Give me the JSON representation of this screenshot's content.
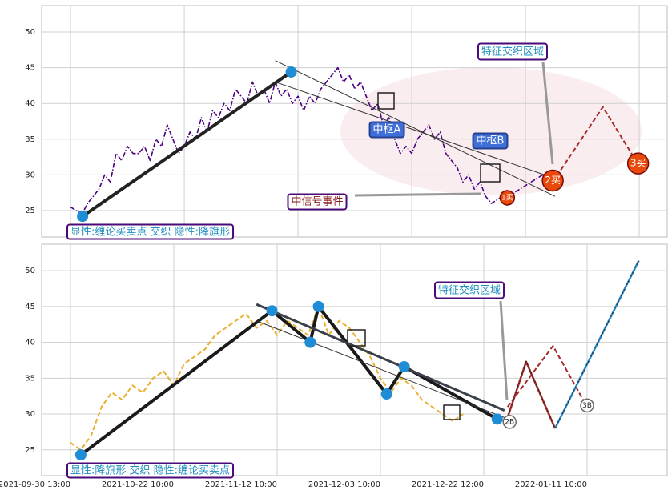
{
  "chart_data": [
    {
      "type": "line",
      "xlim": [
        -25.4,
        524.6
      ],
      "ylim": [
        21.3,
        53.7
      ],
      "xticks": [
        0,
        100,
        200,
        300,
        400,
        500
      ],
      "yticks": [
        25,
        30,
        35,
        40,
        45,
        50
      ],
      "grid": true,
      "caption": "显性:缠论买卖点 交织 隐性:降旗形",
      "annotations": [
        "中枢A",
        "中枢B",
        "特征交织区域",
        "中信号事件"
      ],
      "series": [
        {
          "style": "dashdot",
          "color": "#4b0082",
          "x": [
            0,
            5,
            10,
            15,
            20,
            25,
            30,
            35,
            40,
            45,
            50,
            55,
            60,
            65,
            70,
            75,
            80,
            85,
            90,
            95,
            100,
            105,
            110,
            115,
            120,
            125,
            130,
            135,
            140,
            145,
            150,
            155,
            160,
            165,
            170,
            175,
            180,
            185,
            190,
            195,
            200,
            205,
            210,
            215,
            220,
            225,
            230,
            235,
            240,
            245,
            250,
            255,
            260,
            265,
            270,
            275,
            280,
            285,
            290,
            295,
            300,
            305,
            310,
            315,
            320,
            325,
            330,
            335,
            340,
            345,
            350,
            355,
            360,
            365,
            370,
            375,
            380,
            385,
            390,
            395,
            400,
            405,
            410,
            415
          ],
          "values": [
            25.5,
            25,
            24.5,
            26,
            27,
            28,
            30,
            29,
            33,
            32,
            34,
            33,
            33,
            34,
            32,
            35,
            34,
            37,
            35,
            33,
            34,
            36,
            35,
            38,
            36,
            39,
            38,
            40,
            39,
            42,
            41,
            40,
            43,
            41,
            42,
            40,
            43,
            41,
            42,
            40,
            41,
            39,
            41,
            40,
            42,
            43,
            44,
            45,
            43,
            44,
            42,
            43,
            41,
            39,
            40,
            37,
            38,
            35,
            33,
            34,
            33,
            35,
            36,
            37,
            35,
            36,
            33,
            32,
            31,
            29,
            30,
            28,
            29,
            27,
            26,
            26.5,
            27,
            26,
            27.5,
            28,
            28.5,
            29,
            29.5,
            30
          ]
        },
        {
          "style": "thick",
          "color": "#222222",
          "x": [
            10.6,
            194
          ],
          "values": [
            24.2,
            44.4
          ]
        },
        {
          "style": "thin",
          "color": "#333333",
          "x": [
            180,
            426
          ],
          "values": [
            46,
            27
          ]
        },
        {
          "style": "thin",
          "color": "#333333",
          "x": [
            180,
            426
          ],
          "values": [
            43,
            29.5
          ]
        },
        {
          "style": "dashed",
          "color": "#a52a2a",
          "x": [
            424,
            468,
            499
          ],
          "values": [
            29,
            39.5,
            31.5
          ]
        }
      ],
      "points": {
        "color": "#1f8dd6",
        "x": [
          10.6,
          194
        ],
        "values": [
          24.2,
          44.4
        ]
      },
      "signals": {
        "color": "#e84a0c",
        "labels": [
          "1买",
          "2买",
          "3买"
        ],
        "x": [
          384,
          424,
          499
        ],
        "values": [
          26.8,
          29.2,
          31.6
        ]
      }
    },
    {
      "type": "line",
      "xlim": [
        -27.9,
        577.5
      ],
      "ylim": [
        21.4,
        53.7
      ],
      "xticks": [
        {
          "value": 0,
          "label": "2021-09-30 13:00"
        },
        {
          "value": 100,
          "label": "2021-10-22 10:00"
        },
        {
          "value": 200,
          "label": "2021-11-12 10:00"
        },
        {
          "value": 300,
          "label": "2021-12-03 10:00"
        },
        {
          "value": 400,
          "label": "2021-12-22 12:00"
        },
        {
          "value": 500,
          "label": "2022-01-11 10:00"
        }
      ],
      "yticks": [
        25,
        30,
        35,
        40,
        45,
        50
      ],
      "grid": true,
      "caption": "显性:降旗形 交织 隐性:缠论买卖点",
      "annotations": [
        "特征交织区域"
      ],
      "series": [
        {
          "style": "dashed",
          "color": "#e8b030",
          "x": [
            0,
            10,
            20,
            30,
            40,
            50,
            60,
            70,
            80,
            90,
            100,
            110,
            120,
            130,
            140,
            150,
            160,
            170,
            180,
            190,
            200,
            210,
            220,
            230,
            240,
            250,
            260,
            270,
            280,
            290,
            300,
            310,
            320,
            330,
            340,
            350,
            360,
            370,
            380
          ],
          "values": [
            26,
            25,
            27,
            31,
            33,
            32,
            34,
            33,
            35,
            36,
            34,
            37,
            38,
            39,
            41,
            42,
            43,
            44,
            42,
            43,
            41,
            43,
            42,
            41,
            45,
            41,
            43,
            42,
            40,
            38,
            35,
            33,
            35,
            34,
            32,
            31,
            30,
            29,
            30
          ]
        },
        {
          "style": "thick",
          "color": "#1a1a1a",
          "x": [
            10,
            195,
            232,
            240,
            306,
            323,
            413
          ],
          "values": [
            24.3,
            44.4,
            40,
            45,
            32.8,
            36.6,
            29.3
          ]
        },
        {
          "style": "trend",
          "color": "#3a3f4a",
          "x": [
            180,
            420
          ],
          "values": [
            45.3,
            30.5
          ]
        },
        {
          "style": "thin",
          "color": "#333333",
          "x": [
            180,
            420
          ],
          "values": [
            43,
            29.5
          ]
        },
        {
          "style": "dashed",
          "color": "#a52a2a",
          "x": [
            423,
            467,
            500
          ],
          "values": [
            31,
            39.5,
            31
          ]
        },
        {
          "style": "zigzag",
          "color": "#a52a2a",
          "x": [
            423,
            441,
            469
          ],
          "values": [
            29.5,
            37.3,
            28
          ]
        },
        {
          "style": "zigzag",
          "color": "#2a8ccf",
          "x": [
            469,
            550
          ],
          "values": [
            28,
            51.4
          ]
        }
      ],
      "points": {
        "color": "#1f8dd6",
        "x": [
          10,
          195,
          232,
          240,
          306,
          323,
          413
        ],
        "values": [
          24.3,
          44.4,
          40,
          45,
          32.8,
          36.6,
          29.3
        ]
      },
      "signals": {
        "color": "#ffffff",
        "labels": [
          "2B",
          "3B"
        ],
        "x": [
          425,
          500
        ],
        "values": [
          28.9,
          31.2
        ]
      }
    }
  ]
}
